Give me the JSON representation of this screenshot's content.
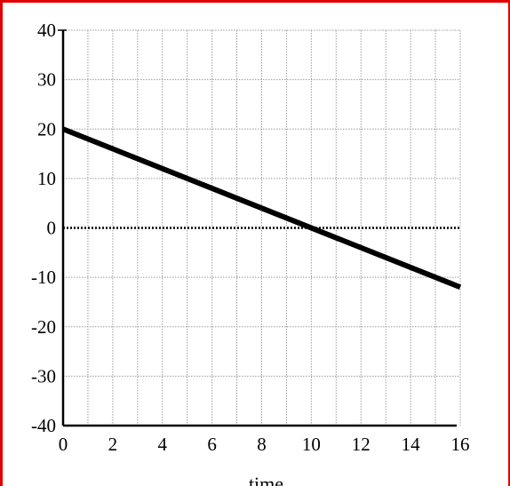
{
  "chart_data": {
    "type": "line",
    "title": "",
    "xlabel": "time",
    "ylabel": "",
    "xlim": [
      0,
      16
    ],
    "ylim": [
      -40,
      40
    ],
    "x_ticks": [
      0,
      2,
      4,
      6,
      8,
      10,
      12,
      14,
      16
    ],
    "y_ticks": [
      40,
      30,
      20,
      10,
      0,
      -10,
      -20,
      -30,
      -40
    ],
    "x_tick_labels": [
      "0",
      "2",
      "4",
      "6",
      "8",
      "10",
      "12",
      "14",
      "16"
    ],
    "y_tick_labels": [
      "40",
      "30",
      "20",
      "10",
      "0",
      "-10",
      "-20",
      "-30",
      "-40"
    ],
    "grid": true,
    "legend": "none",
    "series": [
      {
        "x": [
          0,
          16
        ],
        "y": [
          20,
          -12
        ],
        "color": "#000000"
      }
    ],
    "zero_line": {
      "y": 0,
      "style": "dotted"
    }
  },
  "colors": {
    "frame_border": "#e00000",
    "grid": "#9a9a9a",
    "axis": "#000000",
    "line": "#000000"
  }
}
